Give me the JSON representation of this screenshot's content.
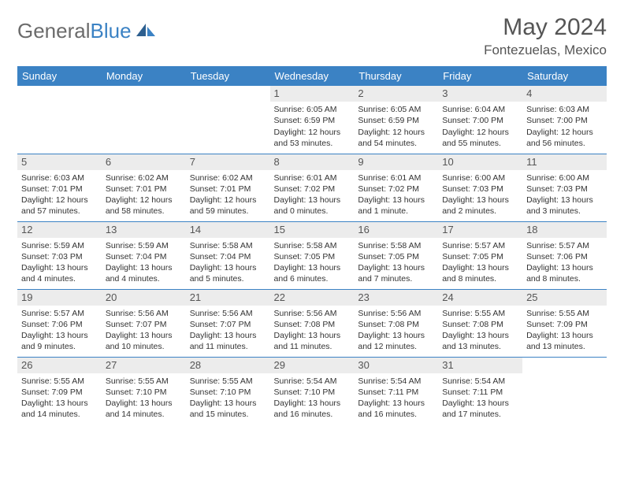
{
  "logo": {
    "text1": "General",
    "text2": "Blue"
  },
  "title": "May 2024",
  "location": "Fontezuelas, Mexico",
  "weekdays": [
    "Sunday",
    "Monday",
    "Tuesday",
    "Wednesday",
    "Thursday",
    "Friday",
    "Saturday"
  ],
  "colors": {
    "header_bg": "#3b82c4",
    "header_text": "#ffffff",
    "daynum_bg": "#ececec",
    "border": "#3b82c4",
    "title_color": "#555555",
    "logo_gray": "#6b6b6b",
    "logo_blue": "#3b82c4"
  },
  "weeks": [
    [
      {
        "n": "",
        "sr": "",
        "ss": "",
        "dl": ""
      },
      {
        "n": "",
        "sr": "",
        "ss": "",
        "dl": ""
      },
      {
        "n": "",
        "sr": "",
        "ss": "",
        "dl": ""
      },
      {
        "n": "1",
        "sr": "Sunrise: 6:05 AM",
        "ss": "Sunset: 6:59 PM",
        "dl": "Daylight: 12 hours and 53 minutes."
      },
      {
        "n": "2",
        "sr": "Sunrise: 6:05 AM",
        "ss": "Sunset: 6:59 PM",
        "dl": "Daylight: 12 hours and 54 minutes."
      },
      {
        "n": "3",
        "sr": "Sunrise: 6:04 AM",
        "ss": "Sunset: 7:00 PM",
        "dl": "Daylight: 12 hours and 55 minutes."
      },
      {
        "n": "4",
        "sr": "Sunrise: 6:03 AM",
        "ss": "Sunset: 7:00 PM",
        "dl": "Daylight: 12 hours and 56 minutes."
      }
    ],
    [
      {
        "n": "5",
        "sr": "Sunrise: 6:03 AM",
        "ss": "Sunset: 7:01 PM",
        "dl": "Daylight: 12 hours and 57 minutes."
      },
      {
        "n": "6",
        "sr": "Sunrise: 6:02 AM",
        "ss": "Sunset: 7:01 PM",
        "dl": "Daylight: 12 hours and 58 minutes."
      },
      {
        "n": "7",
        "sr": "Sunrise: 6:02 AM",
        "ss": "Sunset: 7:01 PM",
        "dl": "Daylight: 12 hours and 59 minutes."
      },
      {
        "n": "8",
        "sr": "Sunrise: 6:01 AM",
        "ss": "Sunset: 7:02 PM",
        "dl": "Daylight: 13 hours and 0 minutes."
      },
      {
        "n": "9",
        "sr": "Sunrise: 6:01 AM",
        "ss": "Sunset: 7:02 PM",
        "dl": "Daylight: 13 hours and 1 minute."
      },
      {
        "n": "10",
        "sr": "Sunrise: 6:00 AM",
        "ss": "Sunset: 7:03 PM",
        "dl": "Daylight: 13 hours and 2 minutes."
      },
      {
        "n": "11",
        "sr": "Sunrise: 6:00 AM",
        "ss": "Sunset: 7:03 PM",
        "dl": "Daylight: 13 hours and 3 minutes."
      }
    ],
    [
      {
        "n": "12",
        "sr": "Sunrise: 5:59 AM",
        "ss": "Sunset: 7:03 PM",
        "dl": "Daylight: 13 hours and 4 minutes."
      },
      {
        "n": "13",
        "sr": "Sunrise: 5:59 AM",
        "ss": "Sunset: 7:04 PM",
        "dl": "Daylight: 13 hours and 4 minutes."
      },
      {
        "n": "14",
        "sr": "Sunrise: 5:58 AM",
        "ss": "Sunset: 7:04 PM",
        "dl": "Daylight: 13 hours and 5 minutes."
      },
      {
        "n": "15",
        "sr": "Sunrise: 5:58 AM",
        "ss": "Sunset: 7:05 PM",
        "dl": "Daylight: 13 hours and 6 minutes."
      },
      {
        "n": "16",
        "sr": "Sunrise: 5:58 AM",
        "ss": "Sunset: 7:05 PM",
        "dl": "Daylight: 13 hours and 7 minutes."
      },
      {
        "n": "17",
        "sr": "Sunrise: 5:57 AM",
        "ss": "Sunset: 7:05 PM",
        "dl": "Daylight: 13 hours and 8 minutes."
      },
      {
        "n": "18",
        "sr": "Sunrise: 5:57 AM",
        "ss": "Sunset: 7:06 PM",
        "dl": "Daylight: 13 hours and 8 minutes."
      }
    ],
    [
      {
        "n": "19",
        "sr": "Sunrise: 5:57 AM",
        "ss": "Sunset: 7:06 PM",
        "dl": "Daylight: 13 hours and 9 minutes."
      },
      {
        "n": "20",
        "sr": "Sunrise: 5:56 AM",
        "ss": "Sunset: 7:07 PM",
        "dl": "Daylight: 13 hours and 10 minutes."
      },
      {
        "n": "21",
        "sr": "Sunrise: 5:56 AM",
        "ss": "Sunset: 7:07 PM",
        "dl": "Daylight: 13 hours and 11 minutes."
      },
      {
        "n": "22",
        "sr": "Sunrise: 5:56 AM",
        "ss": "Sunset: 7:08 PM",
        "dl": "Daylight: 13 hours and 11 minutes."
      },
      {
        "n": "23",
        "sr": "Sunrise: 5:56 AM",
        "ss": "Sunset: 7:08 PM",
        "dl": "Daylight: 13 hours and 12 minutes."
      },
      {
        "n": "24",
        "sr": "Sunrise: 5:55 AM",
        "ss": "Sunset: 7:08 PM",
        "dl": "Daylight: 13 hours and 13 minutes."
      },
      {
        "n": "25",
        "sr": "Sunrise: 5:55 AM",
        "ss": "Sunset: 7:09 PM",
        "dl": "Daylight: 13 hours and 13 minutes."
      }
    ],
    [
      {
        "n": "26",
        "sr": "Sunrise: 5:55 AM",
        "ss": "Sunset: 7:09 PM",
        "dl": "Daylight: 13 hours and 14 minutes."
      },
      {
        "n": "27",
        "sr": "Sunrise: 5:55 AM",
        "ss": "Sunset: 7:10 PM",
        "dl": "Daylight: 13 hours and 14 minutes."
      },
      {
        "n": "28",
        "sr": "Sunrise: 5:55 AM",
        "ss": "Sunset: 7:10 PM",
        "dl": "Daylight: 13 hours and 15 minutes."
      },
      {
        "n": "29",
        "sr": "Sunrise: 5:54 AM",
        "ss": "Sunset: 7:10 PM",
        "dl": "Daylight: 13 hours and 16 minutes."
      },
      {
        "n": "30",
        "sr": "Sunrise: 5:54 AM",
        "ss": "Sunset: 7:11 PM",
        "dl": "Daylight: 13 hours and 16 minutes."
      },
      {
        "n": "31",
        "sr": "Sunrise: 5:54 AM",
        "ss": "Sunset: 7:11 PM",
        "dl": "Daylight: 13 hours and 17 minutes."
      },
      {
        "n": "",
        "sr": "",
        "ss": "",
        "dl": ""
      }
    ]
  ]
}
